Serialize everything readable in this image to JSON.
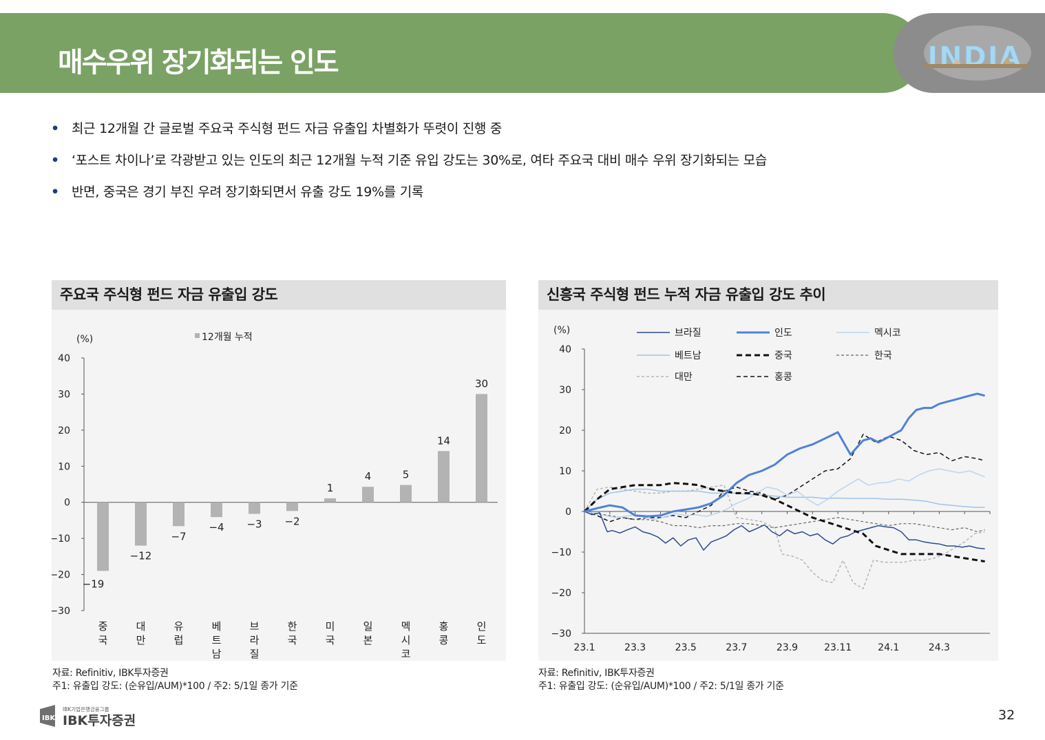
{
  "header": {
    "title": "매수우위 장기화되는 인도",
    "logo_text": "INDIA"
  },
  "bullets": [
    "최근 12개월 간 글로벌 주요국 주식형 펀드 자금 유출입 차별화가 뚜렷이 진행 중",
    "‘포스트 차이나’로 각광받고 있는 인도의 최근 12개월 누적 기준 유입 강도는 30%로, 여타 주요국 대비 매수 우위 장기화되는 모습",
    "반면, 중국은 경기 부진 우려 장기화되면서 유출 강도 19%를 기록"
  ],
  "left_panel": {
    "title": "주요국 주식형 펀드 자금 유출입 강도",
    "source_line1": "자료: Refinitiv, IBK투자증권",
    "source_line2": "주1:  유출입 강도: (순유입/AUM)*100 / 주2: 5/1일 종가 기준"
  },
  "right_panel": {
    "title": "신흥국 주식형 펀드 누적 자금 유출입 강도 추이",
    "source_line1": "자료: Refinitiv, IBK투자증권",
    "source_line2": "주1:  유출입 강도: (순유입/AUM)*100 / 주2: 5/1일 종가 기준"
  },
  "footer": {
    "company_small": "IBK기업은행금융그룹",
    "company": "IBK투자증권",
    "page_number": "32"
  },
  "chart_data": [
    {
      "type": "bar",
      "title": "주요국 주식형 펀드 자금 유출입 강도",
      "ylabel": "(%)",
      "legend": "12개월 누적",
      "ylim": [
        -30,
        40
      ],
      "yticks": [
        40,
        30,
        20,
        10,
        0,
        -10,
        -20,
        -30
      ],
      "ytick_labels": [
        "40",
        "30",
        "20",
        "10",
        "0",
        "−10",
        "−20",
        "−30"
      ],
      "categories": [
        [
          "중",
          "국"
        ],
        [
          "대",
          "만"
        ],
        [
          "유",
          "럽"
        ],
        [
          "베",
          "트",
          "남"
        ],
        [
          "브",
          "라",
          "질"
        ],
        [
          "한",
          "국"
        ],
        [
          "미",
          "국"
        ],
        [
          "일",
          "본"
        ],
        [
          "멕",
          "시",
          "코"
        ],
        [
          "홍",
          "콩"
        ],
        [
          "인",
          "도"
        ]
      ],
      "values": [
        -19,
        -12,
        -6.6,
        -4.1,
        -3.2,
        -2.4,
        1.1,
        4.3,
        4.8,
        14.2,
        30
      ],
      "labels": [
        "−19",
        "−12",
        "−7",
        "−4",
        "−3",
        "−2",
        "1",
        "4",
        "5",
        "14",
        "30"
      ],
      "bar_color": "#b3b3b3"
    },
    {
      "type": "line",
      "title": "신흥국 주식형 펀드 누적 자금 유출입 강도 추이",
      "ylabel": "(%)",
      "ylim": [
        -30,
        40
      ],
      "yticks": [
        40,
        30,
        20,
        10,
        0,
        -10,
        -20,
        -30
      ],
      "ytick_labels": [
        "40",
        "30",
        "20",
        "10",
        "0",
        "−10",
        "−20",
        "−30"
      ],
      "xlim": [
        0,
        16
      ],
      "xticks": [
        0,
        2,
        4,
        6,
        8,
        10,
        12,
        14
      ],
      "xtick_labels": [
        "23.1",
        "23.3",
        "23.5",
        "23.7",
        "23.9",
        "23.11",
        "24.1",
        "24.3"
      ],
      "series": [
        {
          "name": "브라질",
          "color": "#2c4a8c",
          "width": 1.5,
          "dash": "",
          "x": [
            0,
            0.3,
            0.6,
            0.9,
            1.1,
            1.4,
            1.7,
            2.0,
            2.3,
            2.6,
            2.9,
            3.2,
            3.5,
            3.8,
            4.1,
            4.4,
            4.7,
            5.0,
            5.3,
            5.6,
            5.9,
            6.2,
            6.5,
            6.8,
            7.1,
            7.4,
            7.7,
            8.0,
            8.3,
            8.6,
            8.9,
            9.2,
            9.5,
            9.8,
            10.1,
            10.4,
            10.7,
            11.0,
            11.3,
            11.6,
            11.9,
            12.2,
            12.5,
            12.8,
            13.1,
            13.4,
            13.7,
            14.0,
            14.3,
            14.6,
            14.9,
            15.2,
            15.5,
            15.8
          ],
          "y": [
            0,
            -0.8,
            -0.3,
            -5,
            -4.7,
            -5.3,
            -4.5,
            -3.8,
            -5,
            -5.5,
            -6.3,
            -7.8,
            -6.5,
            -8.5,
            -7,
            -6.5,
            -9.5,
            -7.5,
            -6.8,
            -6,
            -4.5,
            -3.5,
            -5,
            -4.2,
            -3.3,
            -5,
            -6,
            -4.5,
            -5.5,
            -5,
            -6,
            -5.5,
            -7,
            -8,
            -6.5,
            -6,
            -5,
            -4.5,
            -4,
            -3.5,
            -3.8,
            -4,
            -5,
            -7,
            -7,
            -7.5,
            -7.8,
            -8,
            -8.5,
            -8.5,
            -8.8,
            -8.5,
            -9,
            -9.2
          ]
        },
        {
          "name": "인도",
          "color": "#4f81d9",
          "width": 3,
          "dash": "",
          "x": [
            0,
            0.5,
            1.0,
            1.5,
            2.0,
            2.5,
            3.0,
            3.5,
            4.0,
            4.5,
            5.0,
            5.5,
            6.0,
            6.5,
            7.0,
            7.5,
            8.0,
            8.5,
            9.0,
            9.5,
            10.0,
            10.5,
            11.0,
            11.3,
            11.6,
            11.9,
            12.2,
            12.5,
            12.8,
            13.1,
            13.4,
            13.7,
            14.0,
            14.3,
            14.6,
            14.9,
            15.2,
            15.5,
            15.8
          ],
          "y": [
            0,
            0.8,
            1.5,
            1,
            -1,
            -1.2,
            -1,
            0,
            0.5,
            1,
            2,
            4,
            7,
            9,
            10,
            11.5,
            14,
            15.5,
            16.5,
            18,
            19.5,
            14,
            17.5,
            18,
            17,
            18,
            19,
            20,
            23,
            25,
            25.5,
            25.5,
            26.5,
            27,
            27.5,
            28,
            28.5,
            29,
            28.5
          ]
        },
        {
          "name": "멕시코",
          "color": "#bcd4f0",
          "width": 1.5,
          "dash": "",
          "x": [
            0,
            0.4,
            0.8,
            1.2,
            1.6,
            2.0,
            2.4,
            2.8,
            3.2,
            3.6,
            4.0,
            4.4,
            4.8,
            5.2,
            5.6,
            6.0,
            6.4,
            6.8,
            7.2,
            7.6,
            8.0,
            8.4,
            8.8,
            9.2,
            9.6,
            10.0,
            10.4,
            10.8,
            11.2,
            11.6,
            12.0,
            12.4,
            12.8,
            13.2,
            13.6,
            14.0,
            14.4,
            14.8,
            15.2,
            15.6,
            15.8
          ],
          "y": [
            0,
            -0.5,
            -1,
            -1.5,
            -1.2,
            -0.8,
            -1.5,
            -2,
            -1.3,
            -0.5,
            -1,
            -0.8,
            -1.2,
            -0.5,
            0.5,
            2,
            3,
            4.5,
            6,
            5.5,
            4,
            5,
            3,
            1.5,
            3,
            5,
            6.5,
            8,
            6.5,
            7,
            7.2,
            8,
            7.5,
            9,
            10,
            10.5,
            10,
            9.5,
            10,
            9,
            8.5
          ]
        },
        {
          "name": "베트남",
          "color": "#9fc3e8",
          "width": 1.5,
          "dash": "",
          "x": [
            0,
            0.5,
            1.0,
            1.5,
            2.0,
            2.5,
            3.0,
            3.5,
            4.0,
            4.5,
            5.0,
            5.5,
            6.0,
            6.5,
            7.0,
            7.5,
            8.0,
            8.5,
            9.0,
            9.5,
            10.0,
            10.5,
            11.0,
            11.5,
            12.0,
            12.5,
            13.0,
            13.5,
            14.0,
            14.5,
            15.0,
            15.5,
            15.8
          ],
          "y": [
            0,
            3,
            4.5,
            5,
            5.5,
            5.5,
            5,
            5,
            5,
            5,
            4.5,
            4.5,
            4.5,
            4.2,
            4,
            3.8,
            3.5,
            3.5,
            3.5,
            3.2,
            3.3,
            3.2,
            3.2,
            3.2,
            3,
            3,
            2.8,
            2.5,
            1.8,
            1.5,
            1.2,
            1,
            1
          ]
        },
        {
          "name": "중국",
          "color": "#111111",
          "width": 3,
          "dash": "8,5",
          "x": [
            0,
            0.5,
            1.0,
            1.5,
            2.0,
            2.5,
            3.0,
            3.5,
            4.0,
            4.5,
            5.0,
            5.5,
            6.0,
            6.5,
            7.0,
            7.5,
            8.0,
            8.5,
            9.0,
            9.5,
            10.0,
            10.5,
            11.0,
            11.5,
            12.0,
            12.5,
            13.0,
            13.5,
            14.0,
            14.5,
            15.0,
            15.5,
            15.8
          ],
          "y": [
            0,
            3,
            5.5,
            6,
            6.5,
            6.5,
            6.5,
            7,
            6.8,
            6.5,
            5.5,
            5,
            4.5,
            4.5,
            4,
            3,
            1.5,
            0,
            -1.5,
            -2.5,
            -3.5,
            -4.5,
            -5.5,
            -8.5,
            -9.5,
            -10.5,
            -10.5,
            -10.5,
            -10.5,
            -11,
            -11.5,
            -12,
            -12.3
          ]
        },
        {
          "name": "한국",
          "color": "#666666",
          "width": 1.2,
          "dash": "4,3",
          "x": [
            0,
            0.5,
            1.0,
            1.5,
            2.0,
            2.5,
            3.0,
            3.5,
            4.0,
            4.5,
            5.0,
            5.5,
            6.0,
            6.5,
            7.0,
            7.5,
            8.0,
            8.5,
            9.0,
            9.5,
            10.0,
            10.5,
            11.0,
            11.5,
            12.0,
            12.5,
            13.0,
            13.5,
            14.0,
            14.5,
            15.0,
            15.5,
            15.8
          ],
          "y": [
            0,
            -0.5,
            -1,
            -1.5,
            -2,
            -2,
            -2.5,
            -3.5,
            -3.5,
            -4,
            -3.5,
            -3.5,
            -3,
            -3,
            -3.5,
            -4,
            -3.5,
            -3,
            -2.5,
            -2,
            -1.5,
            -2,
            -2.5,
            -3,
            -3.5,
            -3,
            -3,
            -3.5,
            -4,
            -4.5,
            -4,
            -5,
            -4.5
          ]
        },
        {
          "name": "대만",
          "color": "#b5b5b5",
          "width": 1.5,
          "dash": "4,3",
          "x": [
            0,
            0.5,
            1.0,
            1.5,
            2.0,
            2.5,
            3.0,
            3.5,
            4.0,
            4.5,
            5.0,
            5.5,
            6.0,
            6.5,
            7.0,
            7.5,
            7.8,
            8.2,
            8.6,
            9.0,
            9.4,
            9.8,
            10.2,
            10.6,
            11.0,
            11.4,
            11.8,
            12.2,
            12.6,
            13.0,
            13.4,
            13.8,
            14.2,
            14.6,
            15.0,
            15.4,
            15.8
          ],
          "y": [
            0,
            5.5,
            6,
            5.5,
            5,
            4.5,
            4.5,
            5,
            5,
            5.5,
            6,
            6.5,
            -1.5,
            -2,
            -2.5,
            -4,
            -10.5,
            -11,
            -12,
            -15,
            -17,
            -17.5,
            -12,
            -17.5,
            -19,
            -12,
            -12.5,
            -12.5,
            -12.5,
            -12,
            -12,
            -11.5,
            -10.5,
            -9,
            -7.5,
            -5.5,
            -5
          ]
        },
        {
          "name": "홍콩",
          "color": "#111111",
          "width": 1.5,
          "dash": "6,4",
          "x": [
            0,
            0.5,
            1.0,
            1.5,
            2.0,
            2.5,
            3.0,
            3.5,
            4.0,
            4.5,
            5.0,
            5.5,
            6.0,
            6.5,
            7.0,
            7.5,
            8.0,
            8.5,
            9.0,
            9.5,
            10.0,
            10.5,
            11.0,
            11.5,
            12.0,
            12.5,
            13.0,
            13.5,
            14.0,
            14.5,
            15.0,
            15.5,
            15.8
          ],
          "y": [
            0,
            -1,
            -2.5,
            -1.5,
            -2,
            -1.5,
            -1.5,
            -1,
            -1.5,
            0,
            1.5,
            5,
            6,
            5,
            4.5,
            3,
            4,
            6,
            8,
            10,
            10.5,
            13,
            19,
            17,
            18.5,
            17.5,
            15,
            14,
            14.5,
            12.5,
            13.5,
            13,
            12.5
          ]
        }
      ]
    }
  ]
}
